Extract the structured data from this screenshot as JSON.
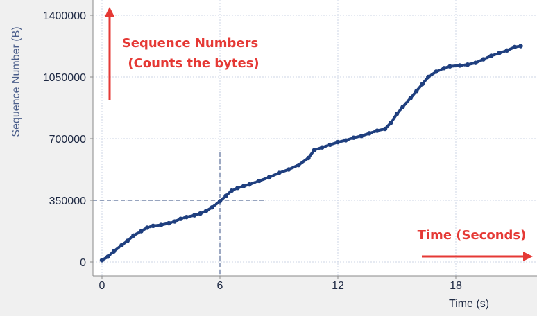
{
  "chart_data": {
    "type": "scatter",
    "title": "",
    "xlabel": "Time (s)",
    "ylabel": "Sequence Number (B)",
    "xlim": [
      -0.5,
      21.5
    ],
    "ylim": [
      -30000,
      1400000
    ],
    "x_ticks": [
      0,
      6,
      12,
      18
    ],
    "x_tick_labels": [
      "0",
      "6",
      "12",
      "18"
    ],
    "y_ticks": [
      0,
      350000,
      700000,
      1050000,
      1400000
    ],
    "y_tick_labels": [
      "0",
      "350000",
      "700000",
      "1050000",
      "1400000"
    ],
    "grid": true,
    "series": [
      {
        "color": "#1f3f7f",
        "x": [
          0.0,
          0.3,
          0.6,
          1.0,
          1.3,
          1.6,
          2.0,
          2.3,
          2.6,
          3.0,
          3.4,
          3.7,
          4.0,
          4.3,
          4.7,
          5.0,
          5.3,
          5.6,
          6.0,
          6.3,
          6.6,
          6.9,
          7.2,
          7.5,
          8.0,
          8.5,
          9.0,
          9.5,
          10.0,
          10.5,
          10.8,
          11.2,
          11.6,
          12.0,
          12.4,
          12.8,
          13.2,
          13.6,
          14.0,
          14.4,
          14.7,
          15.0,
          15.3,
          15.7,
          16.0,
          16.3,
          16.6,
          17.0,
          17.4,
          17.7,
          18.2,
          18.6,
          19.0,
          19.4,
          19.8,
          20.2,
          20.6,
          21.0,
          21.3
        ],
        "y": [
          10000,
          30000,
          60000,
          95000,
          120000,
          150000,
          175000,
          195000,
          205000,
          210000,
          220000,
          230000,
          245000,
          255000,
          265000,
          275000,
          290000,
          310000,
          345000,
          375000,
          405000,
          420000,
          430000,
          440000,
          460000,
          480000,
          505000,
          525000,
          550000,
          590000,
          635000,
          650000,
          665000,
          680000,
          690000,
          705000,
          715000,
          730000,
          745000,
          755000,
          790000,
          840000,
          880000,
          930000,
          970000,
          1010000,
          1050000,
          1080000,
          1100000,
          1110000,
          1115000,
          1120000,
          1130000,
          1150000,
          1170000,
          1185000,
          1200000,
          1220000,
          1225000
        ]
      }
    ],
    "annotations": {
      "seq_label_line1": "Sequence Numbers",
      "seq_label_line2": "(Counts the bytes)",
      "time_label": "Time (Seconds)",
      "guide_x": 6,
      "guide_y": 350000
    },
    "colors": {
      "accent": "#e53935",
      "marker": "#1f3f7f",
      "guide": "#5b6f99",
      "grid": "#cdd6e6"
    }
  }
}
